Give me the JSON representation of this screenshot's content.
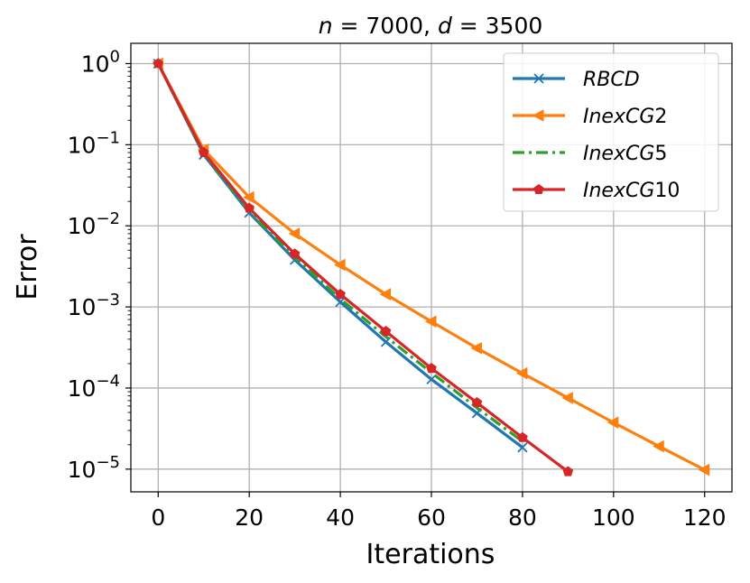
{
  "chart_data": {
    "type": "line",
    "title_parts": {
      "n_var": "n",
      "eq": " = ",
      "n_val": "7000",
      "sep": ", ",
      "d_var": "d",
      "d_val": "3500"
    },
    "xlabel": "Iterations",
    "ylabel": "Error",
    "xlim": [
      -6,
      126
    ],
    "ylim_log10": [
      -5.28,
      0.25
    ],
    "x_ticks": [
      0,
      20,
      40,
      60,
      80,
      100,
      120
    ],
    "x_tick_labels": [
      "0",
      "20",
      "40",
      "60",
      "80",
      "100",
      "120"
    ],
    "y_ticks_exp": [
      0,
      -1,
      -2,
      -3,
      -4,
      -5
    ],
    "y_tick_base": "10",
    "y_tick_exps": [
      "0",
      "−1",
      "−2",
      "−3",
      "−4",
      "−5"
    ],
    "grid": true,
    "legend_position": "top-right",
    "series": [
      {
        "name_base": "RBCD",
        "name_suffix": "",
        "color": "#1f77b4",
        "marker": "x",
        "linestyle": "solid",
        "x": [
          0,
          10,
          20,
          30,
          40,
          50,
          60,
          70,
          80
        ],
        "y": [
          1.0,
          0.075,
          0.0145,
          0.0038,
          0.00115,
          0.00037,
          0.000128,
          4.9e-05,
          1.85e-05
        ]
      },
      {
        "name_base": "InexCG",
        "name_suffix": "2",
        "color": "#ff7f0e",
        "marker": "triangle-left",
        "linestyle": "solid",
        "x": [
          0,
          10,
          20,
          30,
          40,
          50,
          60,
          70,
          80,
          90,
          100,
          110,
          120
        ],
        "y": [
          1.0,
          0.087,
          0.0225,
          0.008,
          0.0033,
          0.00143,
          0.00066,
          0.00031,
          0.000152,
          7.55e-05,
          3.75e-05,
          1.91e-05,
          9.8e-06
        ]
      },
      {
        "name_base": "InexCG",
        "name_suffix": "5",
        "color": "#2ca02c",
        "marker": "none",
        "linestyle": "dashdot",
        "x": [
          0,
          10,
          20,
          30,
          40,
          50,
          60,
          70,
          80
        ],
        "y": [
          1.0,
          0.077,
          0.015,
          0.0041,
          0.00126,
          0.00043,
          0.000155,
          5.7e-05,
          2.2e-05
        ]
      },
      {
        "name_base": "InexCG",
        "name_suffix": "10",
        "color": "#d62728",
        "marker": "pentagon",
        "linestyle": "solid",
        "x": [
          0,
          10,
          20,
          30,
          40,
          50,
          60,
          70,
          80,
          90
        ],
        "y": [
          1.0,
          0.08,
          0.0165,
          0.0045,
          0.00143,
          0.0005,
          0.000175,
          6.6e-05,
          2.45e-05,
          9.3e-06
        ]
      }
    ]
  }
}
